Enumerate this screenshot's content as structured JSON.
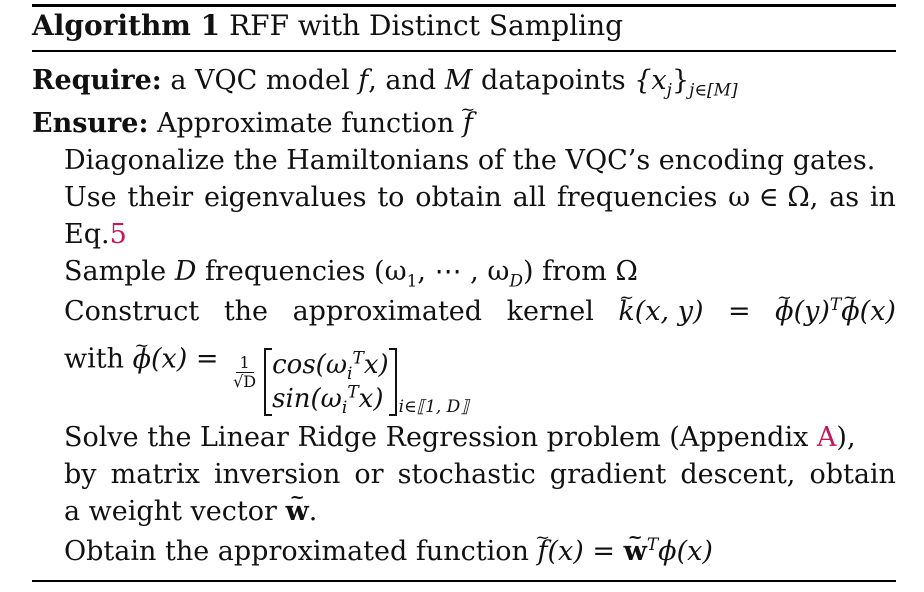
{
  "algorithm": {
    "label": "Algorithm 1",
    "title": "RFF with Distinct Sampling"
  },
  "require": {
    "keyword": "Require:",
    "text_before_f": "a VQC model",
    "f": "f",
    "text_and": ", and",
    "M": "M",
    "text_datapoints": "datapoints",
    "set": "{x",
    "set_sub": "j",
    "set_close": "}",
    "set_index": "j∈[M]"
  },
  "ensure": {
    "keyword": "Ensure:",
    "text": "Approximate function",
    "f": "f"
  },
  "steps": {
    "s1": "Diagonalize the Hamiltonians of the VQC’s encoding gates.",
    "s2a_words": [
      "Use",
      "their",
      "eigenvalues",
      "to",
      "obtain",
      "all",
      "frequencies",
      "ω ∈ Ω,",
      "as",
      "in"
    ],
    "s2b_prefix": "Eq.",
    "s2b_ref": "5",
    "s3_prefix": "Sample",
    "s3_D": "D",
    "s3_mid": "frequencies (ω",
    "s3_sub1": "1",
    "s3_dots": ", ⋯ , ω",
    "s3_subD": "D",
    "s3_suffix": ") from Ω",
    "s4a_words": [
      "Construct",
      "the",
      "approximated",
      "kernel"
    ],
    "s4a_k": "k",
    "s4a_kargs": "(x, y)",
    "s4a_eq": "=",
    "s4a_phi": "ϕ",
    "s4a_phiy": "(y)",
    "s4a_T": "T",
    "s4a_phi2": "ϕ",
    "s4a_phix": "(x)",
    "s4b_with": "with",
    "s4b_phi": "ϕ",
    "s4b_phix": "(x) =",
    "s4b_frac_num": "1",
    "s4b_frac_den": "√D",
    "s4b_row1": "cos(ω",
    "s4b_row1_sub": "i",
    "s4b_row1_sup": "T",
    "s4b_row1_tail": "x)",
    "s4b_row2": "sin(ω",
    "s4b_row2_sub": "i",
    "s4b_row2_sup": "T",
    "s4b_row2_tail": "x)",
    "s4b_index": "i∈⟦1, D⟧",
    "s5a_prefix": "Solve the Linear Ridge Regression problem (Appendix",
    "s5a_ref": "A",
    "s5a_suffix": "),",
    "s5b_words": [
      "by",
      "matrix",
      "inversion",
      "or",
      "stochastic",
      "gradient",
      "descent,",
      "obtain"
    ],
    "s5c_prefix": "a weight vector",
    "s5c_w": "w",
    "s5c_suffix": ".",
    "s6_prefix": "Obtain the approximated function",
    "s6_f": "f",
    "s6_eq": "(x) =",
    "s6_w": "w",
    "s6_T": "T",
    "s6_phi": "ϕ(x)"
  }
}
